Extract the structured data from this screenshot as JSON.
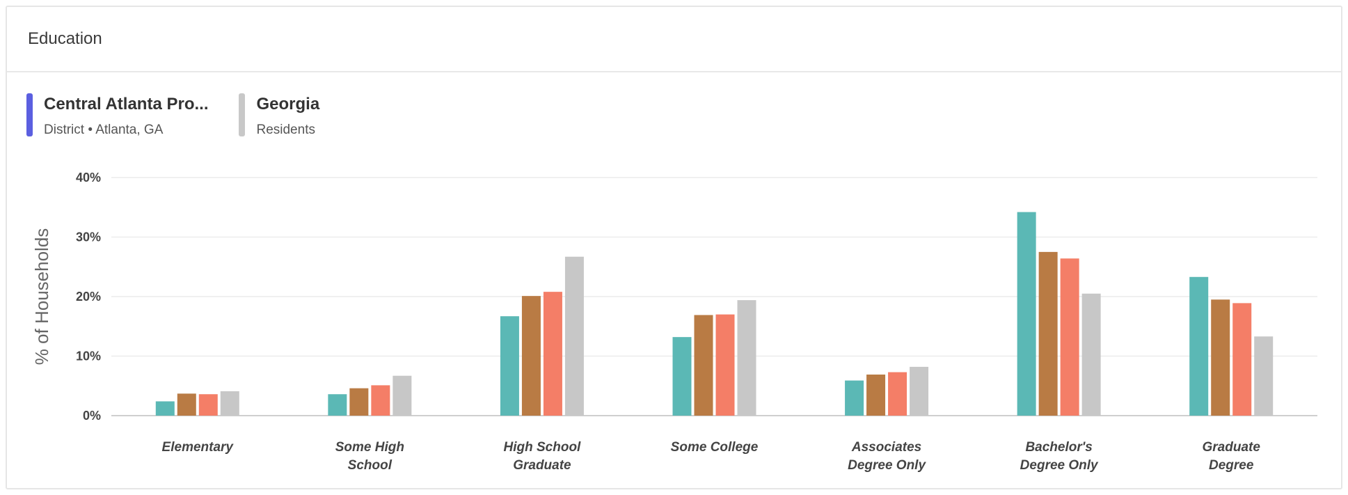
{
  "card": {
    "title": "Education"
  },
  "legend": [
    {
      "name": "Central Atlanta Pro...",
      "sub": "District • Atlanta, GA",
      "color": "#5b5fe0"
    },
    {
      "name": "Georgia",
      "sub": "Residents",
      "color": "#c8c8c8"
    }
  ],
  "chart_data": {
    "type": "bar",
    "ylabel": "% of Households",
    "ylim": [
      0,
      40
    ],
    "yticks": [
      0,
      10,
      20,
      30,
      40
    ],
    "ytick_format": "{v}%",
    "grid": true,
    "categories": [
      [
        "Elementary"
      ],
      [
        "Some High",
        "School"
      ],
      [
        "High School",
        "Graduate"
      ],
      [
        "Some College"
      ],
      [
        "Associates",
        "Degree Only"
      ],
      [
        "Bachelor's",
        "Degree Only"
      ],
      [
        "Graduate",
        "Degree"
      ]
    ],
    "series": [
      {
        "color": "#5bb8b5",
        "values": [
          2.4,
          3.6,
          16.7,
          13.2,
          5.9,
          34.2,
          23.3
        ]
      },
      {
        "color": "#b97b44",
        "values": [
          3.7,
          4.6,
          20.1,
          16.9,
          6.9,
          27.5,
          19.5
        ]
      },
      {
        "color": "#f47e67",
        "values": [
          3.6,
          5.1,
          20.8,
          17.0,
          7.3,
          26.4,
          18.9
        ]
      },
      {
        "color": "#c7c7c7",
        "values": [
          4.1,
          6.7,
          26.7,
          19.4,
          8.2,
          20.5,
          13.3
        ]
      }
    ]
  }
}
